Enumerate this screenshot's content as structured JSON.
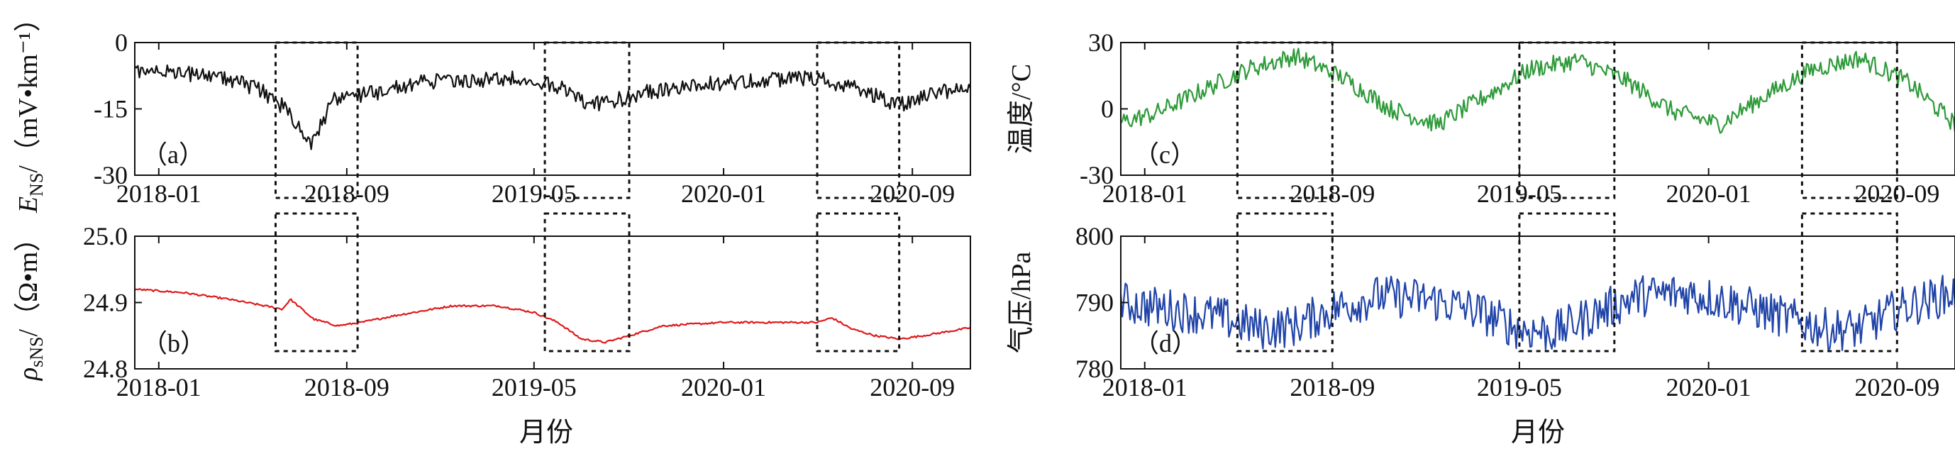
{
  "figure": {
    "xlabel_left": "月份",
    "xlabel_right": "月份"
  },
  "chart_data": [
    {
      "id": "a",
      "type": "line",
      "panel_label": "（a）",
      "ylabel_main": "E",
      "ylabel_sub": "NS",
      "ylabel_unit": "/（mV•km⁻¹）",
      "x_range": [
        "2017-12-01",
        "2020-11-15"
      ],
      "x_ticks": [
        "2018-01",
        "2018-09",
        "2019-05",
        "2020-01",
        "2020-09"
      ],
      "ylim": [
        -30,
        0
      ],
      "y_ticks": [
        0,
        -15,
        -30
      ],
      "color": "#111111",
      "series": [
        {
          "x": [
            "2017-12-01",
            "2018-02-01",
            "2018-04-01",
            "2018-05-15",
            "2018-06-15",
            "2018-07-15",
            "2018-08-15",
            "2018-09-15",
            "2018-10-15",
            "2018-12-01",
            "2019-02-01",
            "2019-04-01",
            "2019-06-01",
            "2019-07-01",
            "2019-08-01",
            "2019-09-01",
            "2019-11-01",
            "2020-01-01",
            "2020-03-01",
            "2020-05-01",
            "2020-06-15",
            "2020-07-15",
            "2020-08-15",
            "2020-09-15",
            "2020-11-15"
          ],
          "values": [
            -5,
            -6,
            -7,
            -10,
            -14,
            -22,
            -12,
            -11,
            -10,
            -8,
            -7.5,
            -7,
            -9,
            -12,
            -13,
            -11,
            -9,
            -8,
            -7.5,
            -7,
            -9,
            -11,
            -13,
            -11,
            -9
          ]
        }
      ],
      "highlight_ranges": [
        [
          "2018-06-01",
          "2018-09-15"
        ],
        [
          "2019-05-15",
          "2019-09-01"
        ],
        [
          "2020-05-01",
          "2020-08-15"
        ]
      ]
    },
    {
      "id": "b",
      "type": "line",
      "panel_label": "（b）",
      "ylabel_main": "ρ",
      "ylabel_sub": "sNS",
      "ylabel_unit": "/（Ω•m）",
      "x_range": [
        "2017-12-01",
        "2020-11-15"
      ],
      "x_ticks": [
        "2018-01",
        "2018-09",
        "2019-05",
        "2020-01",
        "2020-09"
      ],
      "ylim": [
        24.8,
        25.0
      ],
      "y_ticks": [
        25.0,
        24.9,
        24.8
      ],
      "color": "#e0191c",
      "series": [
        {
          "x": [
            "2017-12-01",
            "2018-02-01",
            "2018-04-01",
            "2018-06-10",
            "2018-06-20",
            "2018-07-20",
            "2018-08-20",
            "2018-09-20",
            "2018-11-01",
            "2019-01-15",
            "2019-03-15",
            "2019-05-01",
            "2019-06-01",
            "2019-07-01",
            "2019-08-01",
            "2019-09-01",
            "2019-10-15",
            "2020-01-01",
            "2020-03-01",
            "2020-05-01",
            "2020-05-20",
            "2020-06-15",
            "2020-07-15",
            "2020-08-15",
            "2020-09-15",
            "2020-11-15"
          ],
          "values": [
            24.92,
            24.915,
            24.905,
            24.89,
            24.905,
            24.875,
            24.865,
            24.87,
            24.88,
            24.895,
            24.895,
            24.885,
            24.87,
            24.845,
            24.84,
            24.85,
            24.865,
            24.87,
            24.87,
            24.87,
            24.877,
            24.86,
            24.85,
            24.845,
            24.85,
            24.862
          ]
        }
      ],
      "highlight_ranges": [
        [
          "2018-06-01",
          "2018-09-15"
        ],
        [
          "2019-05-15",
          "2019-09-01"
        ],
        [
          "2020-05-01",
          "2020-08-15"
        ]
      ]
    },
    {
      "id": "c",
      "type": "line",
      "panel_label": "（c）",
      "ylabel_text": "温度/°C",
      "x_range": [
        "2017-12-01",
        "2020-11-15"
      ],
      "x_ticks": [
        "2018-01",
        "2018-09",
        "2019-05",
        "2020-01",
        "2020-09"
      ],
      "ylim": [
        -30,
        30
      ],
      "y_ticks": [
        30,
        0,
        -30
      ],
      "color": "#2e9a3a",
      "series": [
        {
          "x": [
            "2017-12-01",
            "2018-01-15",
            "2018-03-15",
            "2018-05-15",
            "2018-07-15",
            "2018-09-15",
            "2018-11-15",
            "2019-01-15",
            "2019-03-15",
            "2019-05-15",
            "2019-07-15",
            "2019-09-15",
            "2019-11-15",
            "2020-01-15",
            "2020-03-15",
            "2020-05-15",
            "2020-07-15",
            "2020-09-15",
            "2020-11-15"
          ],
          "values": [
            -6,
            -2,
            8,
            18,
            24,
            14,
            0,
            -7,
            5,
            18,
            22,
            13,
            -1,
            -7,
            6,
            18,
            23,
            12,
            -7
          ]
        }
      ],
      "highlight_ranges": [
        [
          "2018-05-01",
          "2018-09-01"
        ],
        [
          "2019-05-01",
          "2019-09-01"
        ],
        [
          "2020-05-01",
          "2020-09-01"
        ]
      ]
    },
    {
      "id": "d",
      "type": "line",
      "panel_label": "（d）",
      "ylabel_text": "气压/hPa",
      "x_range": [
        "2017-12-01",
        "2020-11-15"
      ],
      "x_ticks": [
        "2018-01",
        "2018-09",
        "2019-05",
        "2020-01",
        "2020-09"
      ],
      "ylim": [
        780,
        800
      ],
      "y_ticks": [
        800,
        790,
        780
      ],
      "color": "#2044a8",
      "series": [
        {
          "x": [
            "2017-12-01",
            "2018-02-01",
            "2018-04-01",
            "2018-06-01",
            "2018-07-15",
            "2018-09-01",
            "2018-11-01",
            "2019-01-01",
            "2019-03-01",
            "2019-05-01",
            "2019-06-15",
            "2019-08-01",
            "2019-10-01",
            "2019-12-01",
            "2020-02-01",
            "2020-04-01",
            "2020-06-01",
            "2020-07-15",
            "2020-09-01",
            "2020-11-15"
          ],
          "values": [
            790,
            789,
            788,
            786,
            786.5,
            789,
            791,
            790.5,
            789,
            786,
            785.5,
            788,
            791,
            791.5,
            790,
            788,
            786,
            786,
            789,
            791.5
          ]
        }
      ],
      "highlight_ranges": [
        [
          "2018-05-01",
          "2018-09-01"
        ],
        [
          "2019-05-01",
          "2019-09-01"
        ],
        [
          "2020-05-01",
          "2020-09-01"
        ]
      ]
    }
  ]
}
